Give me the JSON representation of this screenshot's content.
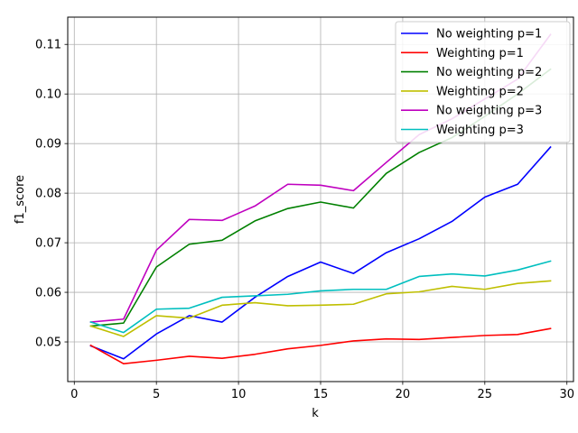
{
  "chart_data": {
    "type": "line",
    "title": "",
    "xlabel": "k",
    "ylabel": "f1_score",
    "xlim": [
      -0.4,
      30.4
    ],
    "ylim": [
      0.042,
      0.1155
    ],
    "xticks": [
      0,
      5,
      10,
      15,
      20,
      25,
      30
    ],
    "yticks": [
      0.05,
      0.06,
      0.07,
      0.08,
      0.09,
      0.1,
      0.11
    ],
    "xtick_labels": [
      "0",
      "5",
      "10",
      "15",
      "20",
      "25",
      "30"
    ],
    "ytick_labels": [
      "0.05",
      "0.06",
      "0.07",
      "0.08",
      "0.09",
      "0.10",
      "0.11"
    ],
    "grid": true,
    "legend_position": "top-right",
    "x": [
      1,
      3,
      5,
      7,
      9,
      11,
      13,
      15,
      17,
      19,
      21,
      23,
      25,
      27,
      29
    ],
    "series": [
      {
        "name": "No weighting p=1",
        "color": "#0000ff",
        "values": [
          0.0492,
          0.0466,
          0.0516,
          0.0553,
          0.054,
          0.059,
          0.0632,
          0.0661,
          0.0638,
          0.068,
          0.0708,
          0.0743,
          0.0792,
          0.0818,
          0.0893
        ]
      },
      {
        "name": "Weighting p=1",
        "color": "#ff0000",
        "values": [
          0.0493,
          0.0456,
          0.0463,
          0.0471,
          0.0467,
          0.0475,
          0.0486,
          0.0493,
          0.0502,
          0.0506,
          0.0505,
          0.0509,
          0.0513,
          0.0515,
          0.0527
        ]
      },
      {
        "name": "No weighting p=2",
        "color": "#008000",
        "values": [
          0.0532,
          0.0538,
          0.0651,
          0.0697,
          0.0705,
          0.0744,
          0.0769,
          0.0782,
          0.077,
          0.084,
          0.0882,
          0.0912,
          0.0955,
          0.1,
          0.105
        ]
      },
      {
        "name": "Weighting p=2",
        "color": "#bfbf00",
        "values": [
          0.0532,
          0.0511,
          0.0553,
          0.0548,
          0.0574,
          0.0579,
          0.0573,
          0.0574,
          0.0576,
          0.0597,
          0.0601,
          0.0612,
          0.0606,
          0.0618,
          0.0623
        ]
      },
      {
        "name": "No weighting p=3",
        "color": "#bf00bf",
        "values": [
          0.054,
          0.0546,
          0.0685,
          0.0747,
          0.0745,
          0.0774,
          0.0818,
          0.0816,
          0.0805,
          0.0862,
          0.0918,
          0.095,
          0.099,
          0.103,
          0.112
        ]
      },
      {
        "name": "Weighting p=3",
        "color": "#00bfbf",
        "values": [
          0.054,
          0.0519,
          0.0566,
          0.0568,
          0.059,
          0.0593,
          0.0596,
          0.0603,
          0.0606,
          0.0606,
          0.0632,
          0.0637,
          0.0633,
          0.0645,
          0.0663
        ]
      }
    ]
  }
}
